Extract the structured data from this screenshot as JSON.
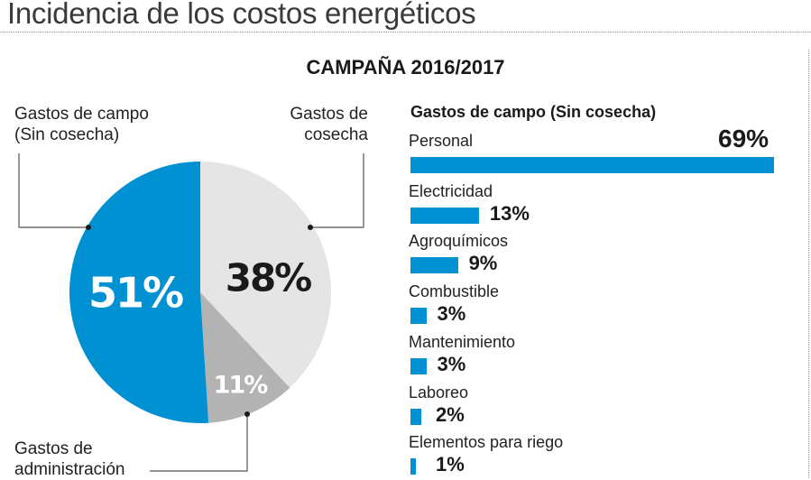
{
  "header": {
    "title": "Incidencia de los costos energéticos",
    "subtitle": "CAMPAÑA 2016/2017"
  },
  "colors": {
    "accent_blue": "#0091d2",
    "light_grey": "#e5e5e5",
    "dark_grey": "#b3b3b3",
    "leader_line": "#555555"
  },
  "chart_data": [
    {
      "type": "pie",
      "title": "CAMPAÑA 2016/2017",
      "slices": [
        {
          "name": "Gastos de cosecha",
          "label_lines": [
            "Gastos de",
            "cosecha"
          ],
          "value": 38,
          "display": "38%",
          "color": "#e5e5e5",
          "text_color": "#1a1a1a"
        },
        {
          "name": "Gastos de administración",
          "label_lines": [
            "Gastos de",
            "administración"
          ],
          "value": 11,
          "display": "11%",
          "color": "#b3b3b3",
          "text_color": "#ffffff"
        },
        {
          "name": "Gastos de campo (Sin cosecha)",
          "label_lines": [
            "Gastos de campo",
            "(Sin cosecha)"
          ],
          "value": 51,
          "display": "51%",
          "color": "#0091d2",
          "text_color": "#ffffff"
        }
      ],
      "start": "top",
      "direction": "clockwise"
    },
    {
      "type": "bar",
      "orientation": "horizontal",
      "title": "Gastos de campo (Sin cosecha)",
      "categories": [
        "Personal",
        "Electricidad",
        "Agroquímicos",
        "Combustible",
        "Mantenimiento",
        "Laboreo",
        "Elementos para riego"
      ],
      "values": [
        69,
        13,
        9,
        3,
        3,
        2,
        1
      ],
      "value_labels": [
        "69%",
        "13%",
        "9%",
        "3%",
        "3%",
        "2%",
        "1%"
      ],
      "unit": "%",
      "color": "#0091d2"
    }
  ]
}
